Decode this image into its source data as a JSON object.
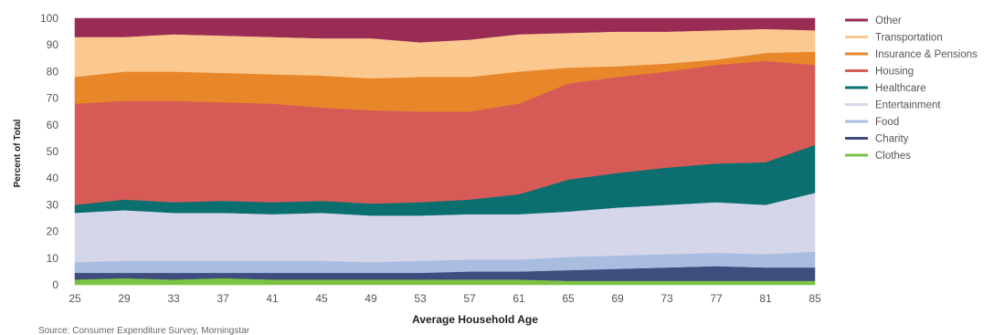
{
  "chart_data": {
    "type": "area",
    "stacked": true,
    "xlabel": "Average Household Age",
    "ylabel": "Percent of Total",
    "source": "Source: Consumer Expenditure Survey, Morningstar",
    "xlim": [
      25,
      85
    ],
    "ylim": [
      0,
      100
    ],
    "x_ticks": [
      25,
      29,
      33,
      37,
      41,
      45,
      49,
      53,
      57,
      61,
      65,
      69,
      73,
      77,
      81,
      85
    ],
    "y_ticks": [
      0,
      10,
      20,
      30,
      40,
      50,
      60,
      70,
      80,
      90,
      100
    ],
    "x": [
      25,
      29,
      33,
      37,
      41,
      45,
      49,
      53,
      57,
      61,
      65,
      69,
      73,
      77,
      81,
      85
    ],
    "legend_position": "right",
    "legend_order": [
      "Other",
      "Transportation",
      "Insurance & Pensions",
      "Housing",
      "Healthcare",
      "Entertainment",
      "Food",
      "Charity",
      "Clothes"
    ],
    "series": [
      {
        "name": "Clothes",
        "color": "#7cc243",
        "values": [
          2,
          2.5,
          2,
          2.5,
          2,
          2,
          2,
          2,
          2,
          2,
          1.5,
          1.5,
          1.5,
          1.5,
          1.5,
          1.5
        ]
      },
      {
        "name": "Charity",
        "color": "#3e4d7e",
        "values": [
          2.5,
          2,
          2.5,
          2,
          2.5,
          2.5,
          2.5,
          2.5,
          3,
          3,
          4,
          4.5,
          5,
          5.5,
          5,
          5
        ]
      },
      {
        "name": "Food",
        "color": "#a9bde0",
        "values": [
          4,
          4.5,
          4.5,
          4.5,
          4.5,
          4.5,
          4,
          4.5,
          4.5,
          4.5,
          5,
          5,
          5,
          5,
          5,
          6
        ]
      },
      {
        "name": "Entertainment",
        "color": "#d5d6ea",
        "values": [
          18.5,
          19,
          18,
          18,
          17.5,
          18,
          17.5,
          17,
          17,
          17,
          17,
          18,
          18.5,
          19,
          18.5,
          22
        ]
      },
      {
        "name": "Healthcare",
        "color": "#0b6f70",
        "values": [
          3,
          4,
          4,
          4.5,
          4.5,
          4.5,
          4.5,
          5,
          5.5,
          7.5,
          12,
          13,
          14,
          14.5,
          16,
          18
        ]
      },
      {
        "name": "Housing",
        "color": "#d65b57",
        "values": [
          38,
          37,
          38,
          37,
          37,
          35,
          35,
          34,
          33,
          34,
          36,
          36,
          36,
          37,
          38,
          30
        ]
      },
      {
        "name": "Insurance & Pensions",
        "color": "#e8862a",
        "values": [
          10,
          11,
          11,
          11,
          11,
          12,
          12,
          13,
          13,
          12,
          6,
          4,
          3,
          2,
          3,
          5
        ]
      },
      {
        "name": "Transportation",
        "color": "#fbc98f",
        "values": [
          15,
          13,
          14,
          14,
          14,
          14,
          15,
          13,
          14,
          14,
          13,
          13,
          12,
          11,
          9,
          8
        ]
      },
      {
        "name": "Other",
        "color": "#9a2b54",
        "values": [
          7,
          7,
          6,
          6.5,
          7,
          7.5,
          7.5,
          9,
          8,
          6,
          5.5,
          5,
          5,
          4.5,
          4,
          4.5
        ]
      }
    ]
  }
}
